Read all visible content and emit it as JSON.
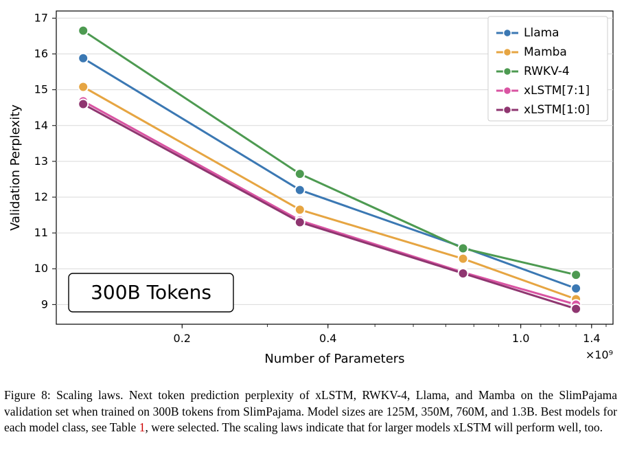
{
  "chart": {
    "type": "line",
    "title_box": "300B Tokens",
    "xlabel": "Number of Parameters",
    "ylabel": "Validation Perplexity",
    "x_scale": "log",
    "x_exponent_label": "×10⁹",
    "background_color": "#ffffff",
    "plot_background": "#ffffff",
    "grid_color": "#d9d9d9",
    "axis_color": "#000000",
    "tick_fontsize": 16,
    "label_fontsize": 18,
    "title_box_fontsize": 24,
    "line_width": 3,
    "marker_size": 7,
    "marker_edge_width": 2,
    "xlim": [
      0.11,
      1.55
    ],
    "xticks": [
      0.2,
      0.4,
      1.0,
      1.4
    ],
    "xtick_labels": [
      "0.2",
      "0.4",
      "1.0",
      "1.4"
    ],
    "ylim": [
      8.45,
      17.2
    ],
    "yticks": [
      9,
      10,
      11,
      12,
      13,
      14,
      15,
      16,
      17
    ],
    "ytick_labels": [
      "9",
      "10",
      "11",
      "12",
      "13",
      "14",
      "15",
      "16",
      "17"
    ],
    "series": [
      {
        "name": "Llama",
        "color": "#3b78b3",
        "x": [
          0.125,
          0.35,
          0.76,
          1.3
        ],
        "y": [
          15.88,
          12.2,
          10.6,
          9.45
        ]
      },
      {
        "name": "Mamba",
        "color": "#e6a542",
        "x": [
          0.125,
          0.35,
          0.76,
          1.3
        ],
        "y": [
          15.08,
          11.65,
          10.28,
          9.15
        ]
      },
      {
        "name": "RWKV-4",
        "color": "#4d9a51",
        "x": [
          0.125,
          0.35,
          0.76,
          1.3
        ],
        "y": [
          16.65,
          12.65,
          10.57,
          9.83
        ]
      },
      {
        "name": "xLSTM[7:1]",
        "color": "#d954a2",
        "x": [
          0.125,
          0.35,
          0.76,
          1.3
        ],
        "y": [
          14.68,
          11.35,
          9.9,
          9.0
        ]
      },
      {
        "name": "xLSTM[1:0]",
        "color": "#8f3670",
        "x": [
          0.125,
          0.35,
          0.76,
          1.3
        ],
        "y": [
          14.6,
          11.3,
          9.87,
          8.88
        ]
      }
    ],
    "legend": {
      "position": "upper_right",
      "box_stroke": "#cccccc",
      "box_fill": "#ffffff",
      "fontsize": 17
    }
  },
  "caption": {
    "fignum": "Figure 8:",
    "text_before": " Scaling laws. Next token prediction perplexity of xLSTM, RWKV-4, Llama, and Mamba on the SlimPajama validation set when trained on 300B tokens from SlimPajama. Model sizes are 125M, 350M, 760M, and 1.3B. Best models for each model class, see Table ",
    "link_text": "1",
    "text_after": ", were selected. The scaling laws indicate that for larger models xLSTM will perform well, too."
  }
}
